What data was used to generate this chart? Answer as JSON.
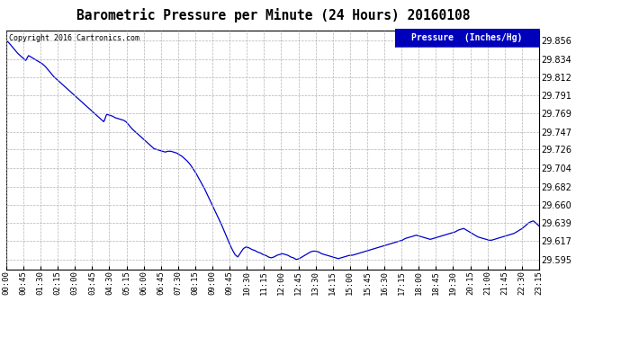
{
  "title": "Barometric Pressure per Minute (24 Hours) 20160108",
  "copyright": "Copyright 2016 Cartronics.com",
  "legend_label": "Pressure  (Inches/Hg)",
  "line_color": "#0000CC",
  "background_color": "#ffffff",
  "plot_bg_color": "#ffffff",
  "grid_color": "#aaaaaa",
  "yticks": [
    29.595,
    29.617,
    29.639,
    29.66,
    29.682,
    29.704,
    29.726,
    29.747,
    29.769,
    29.791,
    29.812,
    29.834,
    29.856
  ],
  "ylim": [
    29.583,
    29.868
  ],
  "xtick_labels": [
    "00:00",
    "00:45",
    "01:30",
    "02:15",
    "03:00",
    "03:45",
    "04:30",
    "05:15",
    "06:00",
    "06:45",
    "07:30",
    "08:15",
    "09:00",
    "09:45",
    "10:30",
    "11:15",
    "12:00",
    "12:45",
    "13:30",
    "14:15",
    "15:00",
    "15:45",
    "16:30",
    "17:15",
    "18:00",
    "18:45",
    "19:30",
    "20:15",
    "21:00",
    "21:45",
    "22:30",
    "23:15"
  ],
  "pressure_data": [
    29.856,
    29.853,
    29.849,
    29.845,
    29.841,
    29.838,
    29.835,
    29.832,
    29.838,
    29.836,
    29.834,
    29.832,
    29.83,
    29.828,
    29.825,
    29.821,
    29.817,
    29.813,
    29.81,
    29.807,
    29.804,
    29.801,
    29.798,
    29.795,
    29.792,
    29.789,
    29.786,
    29.783,
    29.78,
    29.777,
    29.774,
    29.771,
    29.768,
    29.765,
    29.762,
    29.759,
    29.768,
    29.767,
    29.766,
    29.764,
    29.763,
    29.762,
    29.761,
    29.759,
    29.755,
    29.751,
    29.748,
    29.745,
    29.742,
    29.739,
    29.736,
    29.733,
    29.73,
    29.727,
    29.726,
    29.725,
    29.724,
    29.723,
    29.724,
    29.724,
    29.723,
    29.722,
    29.72,
    29.718,
    29.715,
    29.712,
    29.708,
    29.703,
    29.698,
    29.692,
    29.686,
    29.68,
    29.673,
    29.666,
    29.659,
    29.652,
    29.645,
    29.638,
    29.63,
    29.622,
    29.614,
    29.607,
    29.601,
    29.598,
    29.603,
    29.608,
    29.61,
    29.609,
    29.607,
    29.606,
    29.604,
    29.603,
    29.601,
    29.6,
    29.598,
    29.597,
    29.598,
    29.6,
    29.601,
    29.602,
    29.601,
    29.6,
    29.598,
    29.597,
    29.595,
    29.596,
    29.598,
    29.6,
    29.602,
    29.604,
    29.605,
    29.605,
    29.604,
    29.602,
    29.601,
    29.6,
    29.599,
    29.598,
    29.597,
    29.596,
    29.597,
    29.598,
    29.599,
    29.6,
    29.6,
    29.601,
    29.602,
    29.603,
    29.604,
    29.605,
    29.606,
    29.607,
    29.608,
    29.609,
    29.61,
    29.611,
    29.612,
    29.613,
    29.614,
    29.615,
    29.616,
    29.617,
    29.618,
    29.62,
    29.621,
    29.622,
    29.623,
    29.624,
    29.623,
    29.622,
    29.621,
    29.62,
    29.619,
    29.62,
    29.621,
    29.622,
    29.623,
    29.624,
    29.625,
    29.626,
    29.627,
    29.628,
    29.63,
    29.631,
    29.632,
    29.63,
    29.628,
    29.626,
    29.624,
    29.622,
    29.621,
    29.62,
    29.619,
    29.618,
    29.618,
    29.619,
    29.62,
    29.621,
    29.622,
    29.623,
    29.624,
    29.625,
    29.626,
    29.628,
    29.63,
    29.632,
    29.635,
    29.638,
    29.64,
    29.641,
    29.638,
    29.635
  ]
}
